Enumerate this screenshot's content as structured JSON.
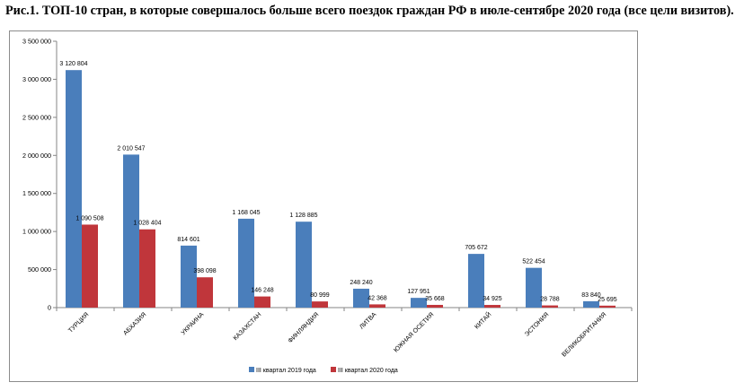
{
  "figure": {
    "caption": "Рис.1. ТОП-10 стран, в которые совершалось больше всего поездок граждан РФ в июле-сентябре 2020 года (все цели визитов)."
  },
  "chart_data": {
    "type": "bar",
    "title": "Рис.1. ТОП-10 стран, в которые совершалось больше всего поездок граждан РФ в июле-сентябре 2020 года (все цели визитов).",
    "xlabel": "",
    "ylabel": "",
    "ylim": [
      0,
      3500000
    ],
    "yticks": [
      0,
      500000,
      1000000,
      1500000,
      2000000,
      2500000,
      3000000,
      3500000
    ],
    "ytick_labels": [
      "0",
      "500 000",
      "1 000 000",
      "1 500 000",
      "2 000 000",
      "2 500 000",
      "3 000 000",
      "3 500 000"
    ],
    "grid": false,
    "legend_position": "bottom",
    "categories": [
      "ТУРЦИЯ",
      "АБХАЗИЯ",
      "УКРАИНА",
      "КАЗАХСТАН",
      "ФИНЛЯНДИЯ",
      "ЛИТВА",
      "ЮЖНАЯ ОСЕТИЯ",
      "КИТАЙ",
      "ЭСТОНИЯ",
      "ВЕЛИКОБРИТАНИЯ"
    ],
    "series": [
      {
        "name": "III квартал 2019 года",
        "color": "#4a7ebb",
        "values": [
          3120804,
          2010547,
          814601,
          1168045,
          1128885,
          248240,
          127951,
          705672,
          522454,
          83840
        ],
        "labels": [
          "3 120 804",
          "2 010 547",
          "814 601",
          "1 168 045",
          "1 128 885",
          "248 240",
          "127 951",
          "705 672",
          "522 454",
          "83 840"
        ]
      },
      {
        "name": "III квартал 2020 года",
        "color": "#c0363b",
        "values": [
          1090508,
          1028404,
          398098,
          146248,
          80999,
          42368,
          35668,
          34925,
          28788,
          25695
        ],
        "labels": [
          "1 090 508",
          "1 028 404",
          "398 098",
          "146 248",
          "80 999",
          "42 368",
          "35 668",
          "34 925",
          "28 788",
          "25 695"
        ]
      }
    ]
  }
}
